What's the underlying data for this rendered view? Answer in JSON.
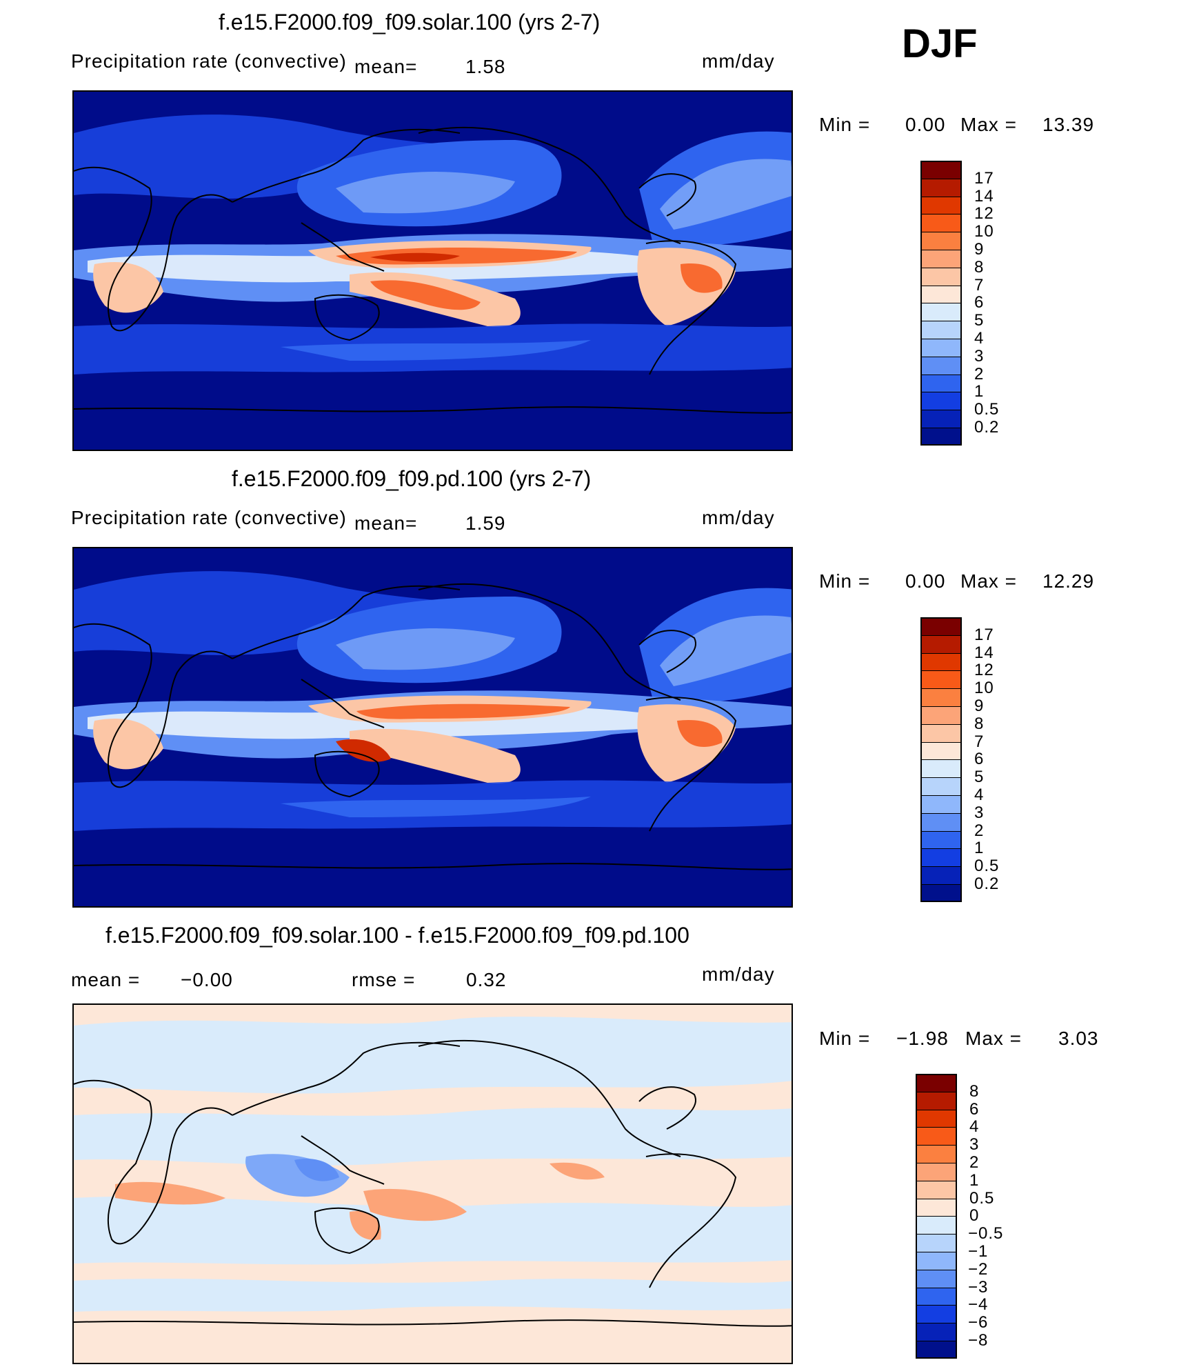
{
  "season": "DJF",
  "panels": [
    {
      "title": "f.e15.F2000.f09_f09.solar.100 (yrs 2-7)",
      "variable": "Precipitation rate (convective)",
      "mean_label": "mean=",
      "mean_value": "1.58",
      "units": "mm/day",
      "min_label": "Min =",
      "min_value": "0.00",
      "max_label": "Max =",
      "max_value": "13.39",
      "colorbar_ticks": [
        "17",
        "14",
        "12",
        "10",
        "9",
        "8",
        "7",
        "6",
        "5",
        "4",
        "3",
        "2",
        "1",
        "0.5",
        "0.2"
      ],
      "colorbar_colors": [
        "#7a0000",
        "#b51b00",
        "#e03800",
        "#f85a18",
        "#fb8040",
        "#fca478",
        "#fcc6a6",
        "#fde7d8",
        "#d9ebfb",
        "#b7d4fb",
        "#8fb7fb",
        "#5f8ff5",
        "#2f64ef",
        "#133ee2",
        "#0622b8",
        "#00108c"
      ]
    },
    {
      "title": "f.e15.F2000.f09_f09.pd.100 (yrs 2-7)",
      "variable": "Precipitation rate (convective)",
      "mean_label": "mean=",
      "mean_value": "1.59",
      "units": "mm/day",
      "min_label": "Min =",
      "min_value": "0.00",
      "max_label": "Max =",
      "max_value": "12.29",
      "colorbar_ticks": [
        "17",
        "14",
        "12",
        "10",
        "9",
        "8",
        "7",
        "6",
        "5",
        "4",
        "3",
        "2",
        "1",
        "0.5",
        "0.2"
      ],
      "colorbar_colors": [
        "#7a0000",
        "#b51b00",
        "#e03800",
        "#f85a18",
        "#fb8040",
        "#fca478",
        "#fcc6a6",
        "#fde7d8",
        "#d9ebfb",
        "#b7d4fb",
        "#8fb7fb",
        "#5f8ff5",
        "#2f64ef",
        "#133ee2",
        "#0622b8",
        "#00108c"
      ]
    },
    {
      "title": "f.e15.F2000.f09_f09.solar.100 - f.e15.F2000.f09_f09.pd.100",
      "mean_label": "mean =",
      "mean_value": "−0.00",
      "rmse_label": "rmse =",
      "rmse_value": "0.32",
      "units": "mm/day",
      "min_label": "Min =",
      "min_value": "−1.98",
      "max_label": "Max =",
      "max_value": "3.03",
      "colorbar_ticks": [
        "8",
        "6",
        "4",
        "3",
        "2",
        "1",
        "0.5",
        "0",
        "−0.5",
        "−1",
        "−2",
        "−3",
        "−4",
        "−6",
        "−8"
      ],
      "colorbar_colors": [
        "#7a0000",
        "#b51b00",
        "#e03800",
        "#f85a18",
        "#fb8040",
        "#fca478",
        "#fcc6a6",
        "#fde7d8",
        "#d9ebfb",
        "#b7d4fb",
        "#8fb7fb",
        "#5f8ff5",
        "#2f64ef",
        "#133ee2",
        "#0622b8",
        "#00108c"
      ]
    }
  ],
  "map_colors": {
    "ocean_dark": "#000c8a",
    "band_mid": "#1b48e6",
    "band_light": "#7ea8f8",
    "band_pale": "#dbe9fb",
    "warm_light": "#fcc6a6",
    "warm_mid": "#f86a30",
    "warm_dark": "#d02a00",
    "diff_bg": "#fde7d8",
    "diff_cool": "#d9ebfb",
    "diff_blue": "#7ea8f8",
    "diff_warm": "#fca478"
  }
}
